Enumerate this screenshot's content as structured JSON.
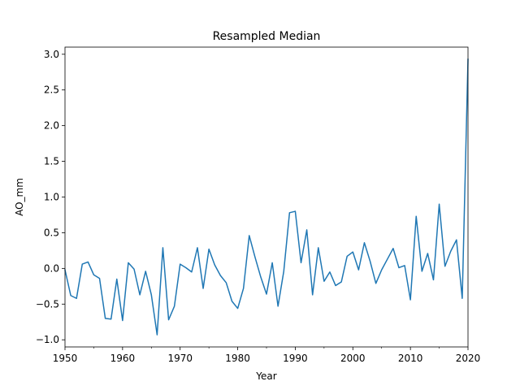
{
  "chart_data": {
    "type": "line",
    "title": "Resampled Median",
    "xlabel": "Year",
    "ylabel": "AO_mm",
    "xlim": [
      1950,
      2020
    ],
    "ylim": [
      -1.1,
      3.1
    ],
    "grid": false,
    "legend": "none",
    "line_color": "#1f77b4",
    "x_major_ticks": [
      1950,
      1960,
      1970,
      1980,
      1990,
      2000,
      2010,
      2020
    ],
    "x_major_tick_labels": [
      "1950",
      "1960",
      "1970",
      "1980",
      "1990",
      "2000",
      "2010",
      "2020"
    ],
    "y_ticks": [
      -1.0,
      -0.5,
      0.0,
      0.5,
      1.0,
      1.5,
      2.0,
      2.5,
      3.0
    ],
    "y_tick_labels": [
      "−1.0",
      "−0.5",
      "0.0",
      "0.5",
      "1.0",
      "1.5",
      "2.0",
      "2.5",
      "3.0"
    ],
    "series": [
      {
        "x": [
          1950,
          1951,
          1952,
          1953,
          1954,
          1955,
          1956,
          1957,
          1958,
          1959,
          1960,
          1961,
          1962,
          1963,
          1964,
          1965,
          1966,
          1967,
          1968,
          1969,
          1970,
          1971,
          1972,
          1973,
          1974,
          1975,
          1976,
          1977,
          1978,
          1979,
          1980,
          1981,
          1982,
          1983,
          1984,
          1985,
          1986,
          1987,
          1988,
          1989,
          1990,
          1991,
          1992,
          1993,
          1994,
          1995,
          1996,
          1997,
          1998,
          1999,
          2000,
          2001,
          2002,
          2003,
          2004,
          2005,
          2006,
          2007,
          2008,
          2009,
          2010,
          2011,
          2012,
          2013,
          2014,
          2015,
          2016,
          2017,
          2018,
          2019,
          2020
        ],
        "y": [
          -0.02,
          -0.38,
          -0.42,
          0.06,
          0.09,
          -0.09,
          -0.14,
          -0.7,
          -0.71,
          -0.15,
          -0.73,
          0.08,
          -0.01,
          -0.37,
          -0.04,
          -0.37,
          -0.93,
          0.29,
          -0.72,
          -0.53,
          0.06,
          0.01,
          -0.05,
          0.29,
          -0.28,
          0.27,
          0.05,
          -0.1,
          -0.2,
          -0.46,
          -0.56,
          -0.28,
          0.46,
          0.16,
          -0.12,
          -0.36,
          0.08,
          -0.53,
          -0.04,
          0.78,
          0.8,
          0.08,
          0.54,
          -0.37,
          0.29,
          -0.18,
          -0.05,
          -0.24,
          -0.19,
          0.17,
          0.23,
          -0.02,
          0.36,
          0.1,
          -0.21,
          -0.02,
          0.13,
          0.28,
          0.01,
          0.04,
          -0.44,
          0.73,
          -0.04,
          0.21,
          -0.16,
          0.9,
          0.03,
          0.24,
          0.4,
          -0.42,
          2.93
        ]
      }
    ]
  }
}
